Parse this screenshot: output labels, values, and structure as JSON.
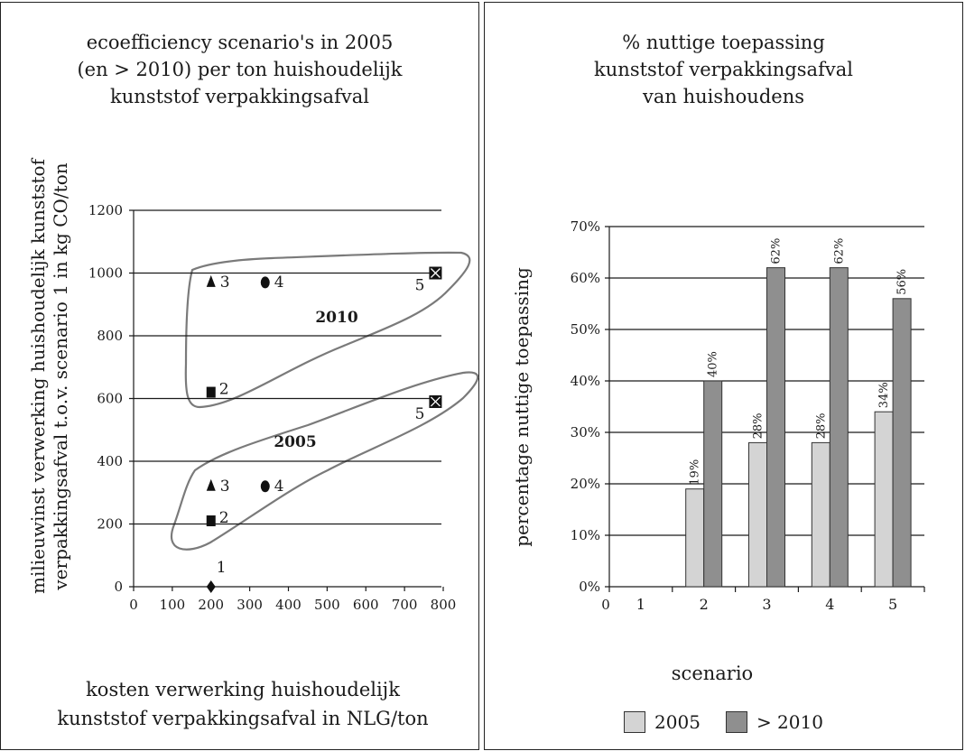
{
  "colors": {
    "series_2005": "#d4d4d4",
    "series_2010": "#8f8f8f",
    "outline": "#7a7a7a"
  },
  "left_chart": {
    "title_lines": [
      "ecoefficiency scenario's in 2005",
      "(en > 2010) per ton huishoudelijk",
      "kunststof verpakkingsafval"
    ],
    "ylabel_lines": [
      "milieuwinst verwerking huishoudelijk kunststof",
      "verpakkingsafval t.o.v. scenario 1 in kg CO/ton"
    ],
    "xlabel_lines": [
      "kosten verwerking huishoudelijk",
      "kunststof verpakkingsafval in NLG/ton"
    ],
    "region_labels": [
      "2010",
      "2005"
    ]
  },
  "right_chart": {
    "title_lines": [
      "% nuttige toepassing",
      "kunststof verpakkingsafval",
      "van huishoudens"
    ],
    "ylabel": "percentage nuttige toepassing",
    "xlabel": "scenario",
    "legend": [
      "2005",
      "> 2010"
    ]
  },
  "chart_data": [
    {
      "type": "scatter",
      "title": "ecoefficiency scenario's in 2005 (en > 2010) per ton huishoudelijk kunststof verpakkingsafval",
      "xlabel": "kosten verwerking huishoudelijk kunststof verpakkingsafval in NLG/ton",
      "ylabel": "milieuwinst verwerking huishoudelijk kunststof verpakkingsafval t.o.v. scenario 1 in kg CO/ton",
      "xlim": [
        0,
        800
      ],
      "ylim": [
        0,
        1200
      ],
      "xticks": [
        0,
        100,
        200,
        300,
        400,
        500,
        600,
        700,
        800
      ],
      "yticks": [
        0,
        200,
        400,
        600,
        800,
        1000,
        1200
      ],
      "grid": "horizontal",
      "series": [
        {
          "name": "2005",
          "points": [
            {
              "label": "1",
              "marker": "diamond",
              "x": 200,
              "y": 0
            },
            {
              "label": "2",
              "marker": "square",
              "x": 200,
              "y": 210
            },
            {
              "label": "3",
              "marker": "triangle",
              "x": 200,
              "y": 320
            },
            {
              "label": "4",
              "marker": "circle",
              "x": 340,
              "y": 320
            },
            {
              "label": "5",
              "marker": "x-square",
              "x": 780,
              "y": 590
            }
          ]
        },
        {
          "name": "2010",
          "points": [
            {
              "label": "2",
              "marker": "square",
              "x": 200,
              "y": 620
            },
            {
              "label": "3",
              "marker": "triangle",
              "x": 200,
              "y": 970
            },
            {
              "label": "4",
              "marker": "circle",
              "x": 340,
              "y": 970
            },
            {
              "label": "5",
              "marker": "x-square",
              "x": 780,
              "y": 1000
            }
          ]
        }
      ]
    },
    {
      "type": "bar",
      "title": "% nuttige toepassing kunststof verpakkingsafval van huishoudens",
      "xlabel": "scenario",
      "ylabel": "percentage nuttige toepassing",
      "categories": [
        "1",
        "2",
        "3",
        "4",
        "5"
      ],
      "x_axis_origin_label": "0",
      "ylim": [
        0,
        70
      ],
      "yticks": [
        "0%",
        "10%",
        "20%",
        "30%",
        "40%",
        "50%",
        "60%",
        "70%"
      ],
      "grid": "horizontal",
      "legend_position": "bottom",
      "series": [
        {
          "name": "2005",
          "values": [
            null,
            19,
            28,
            28,
            34
          ],
          "labels": [
            "",
            "19%",
            "28%",
            "28%",
            "34%"
          ]
        },
        {
          "name": "> 2010",
          "values": [
            null,
            40,
            62,
            62,
            56
          ],
          "labels": [
            "",
            "40%",
            "62%",
            "62%",
            "56%"
          ]
        }
      ]
    }
  ]
}
